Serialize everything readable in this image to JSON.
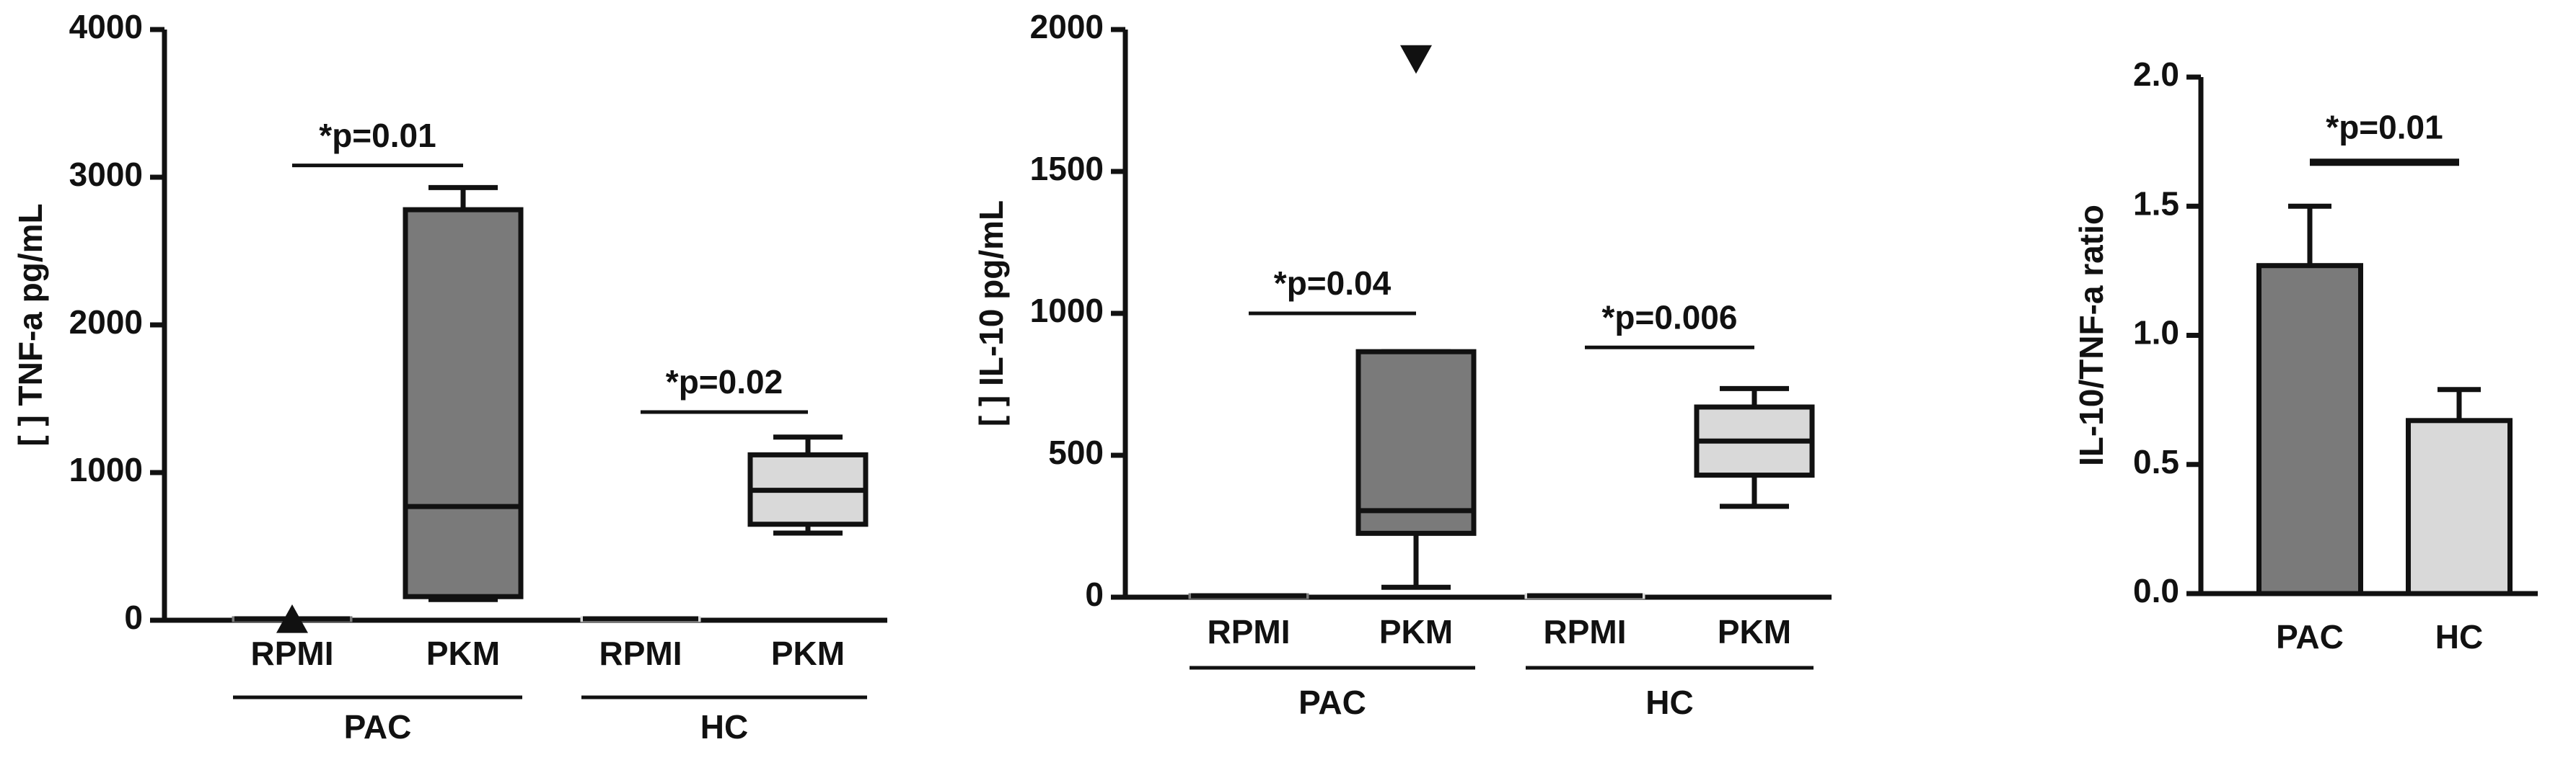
{
  "chart_data": [
    {
      "type": "box",
      "y_label": "[ ] TNF-a pg/mL",
      "ylim": [
        0,
        4000
      ],
      "yticks": [
        0,
        1000,
        2000,
        3000,
        4000
      ],
      "outlier_marker": "triangle-up",
      "groups": [
        {
          "name": "PAC",
          "color": "#7a7a7a",
          "boxes": [
            {
              "category": "RPMI",
              "min": 10,
              "q1": 10,
              "median": 10,
              "q3": 10,
              "max": 10,
              "outliers": [
                0
              ]
            },
            {
              "category": "PKM",
              "min": 140,
              "q1": 160,
              "median": 770,
              "q3": 2780,
              "max": 2930
            }
          ],
          "comparison": {
            "text": "*p=0.01",
            "y": 3080
          }
        },
        {
          "name": "HC",
          "color": "#d9d9d9",
          "boxes": [
            {
              "category": "RPMI",
              "min": 10,
              "q1": 10,
              "median": 10,
              "q3": 10,
              "max": 10
            },
            {
              "category": "PKM",
              "min": 590,
              "q1": 650,
              "median": 880,
              "q3": 1120,
              "max": 1240
            }
          ],
          "comparison": {
            "text": "*p=0.02",
            "y": 1410
          }
        }
      ]
    },
    {
      "type": "box",
      "y_label": "[ ] IL-10 pg/mL",
      "ylim": [
        0,
        2000
      ],
      "yticks": [
        0,
        500,
        1000,
        1500,
        2000
      ],
      "outlier_marker": "triangle-down",
      "groups": [
        {
          "name": "PAC",
          "color": "#7a7a7a",
          "boxes": [
            {
              "category": "RPMI",
              "min": 5,
              "q1": 5,
              "median": 5,
              "q3": 5,
              "max": 5
            },
            {
              "category": "PKM",
              "min": 35,
              "q1": 225,
              "median": 305,
              "q3": 865,
              "max": 865,
              "outliers": [
                1900
              ]
            }
          ],
          "comparison": {
            "text": "*p=0.04",
            "y": 1000
          }
        },
        {
          "name": "HC",
          "color": "#d9d9d9",
          "boxes": [
            {
              "category": "RPMI",
              "min": 5,
              "q1": 5,
              "median": 5,
              "q3": 5,
              "max": 5
            },
            {
              "category": "PKM",
              "min": 320,
              "q1": 430,
              "median": 550,
              "q3": 670,
              "max": 735
            }
          ],
          "comparison": {
            "text": "*p=0.006",
            "y": 880
          }
        }
      ]
    },
    {
      "type": "bar",
      "y_label": "IL-10/TNF-a ratio",
      "ylim": [
        0,
        2.0
      ],
      "yticks": [
        {
          "value": 0,
          "label": "0.0"
        },
        {
          "value": 0.5,
          "label": "0.5"
        },
        {
          "value": 1,
          "label": "1.0"
        },
        {
          "value": 1.5,
          "label": "1.5"
        },
        {
          "value": 2,
          "label": "2.0"
        }
      ],
      "categories": [
        "PAC",
        "HC"
      ],
      "values": [
        1.27,
        0.67
      ],
      "errors": [
        0.23,
        0.12
      ],
      "colors": [
        "#7a7a7a",
        "#d9d9d9"
      ],
      "comparison": {
        "text": "*p=0.01",
        "y": 1.67
      }
    }
  ]
}
